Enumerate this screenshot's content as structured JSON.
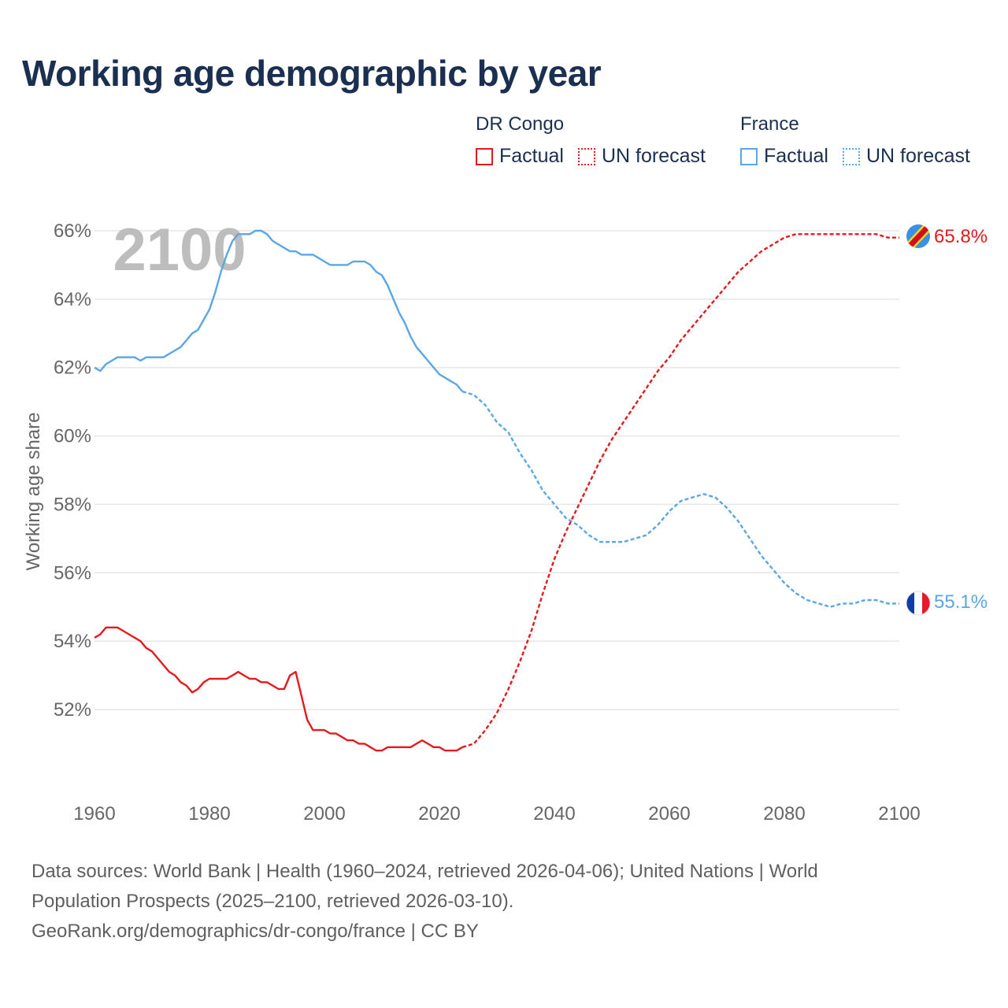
{
  "title": "Working age demographic by year",
  "legend": {
    "groups": [
      {
        "name": "DR Congo",
        "color": "#e41a1c",
        "factual_label": "Factual",
        "forecast_label": "UN forecast"
      },
      {
        "name": "France",
        "color": "#5aa6e6",
        "factual_label": "Factual",
        "forecast_label": "UN forecast"
      }
    ]
  },
  "year_watermark": "2100",
  "end_labels": {
    "drc": "65.8%",
    "france": "55.1%"
  },
  "footer": {
    "line1": "Data sources: World Bank | Health (1960–2024, retrieved 2026-04-06); United Nations | World",
    "line2": "Population Prospects (2025–2100, retrieved 2026-03-10).",
    "line3": "GeoRank.org/demographics/dr-congo/france | CC BY"
  },
  "colors": {
    "drc": "#e41a1c",
    "france": "#5aa6e6",
    "title": "#1b3050",
    "grid": "#e6e6e6",
    "axis_text": "#666666"
  },
  "chart_data": {
    "type": "line",
    "title": "Working age demographic by year",
    "xlabel": "",
    "ylabel": "Working age share",
    "xlim": [
      1960,
      2100
    ],
    "ylim": [
      50,
      66.5
    ],
    "x_ticks": [
      1960,
      1980,
      2000,
      2020,
      2040,
      2060,
      2080,
      2100
    ],
    "y_ticks": [
      52,
      54,
      56,
      58,
      60,
      62,
      64,
      66
    ],
    "y_tick_labels": [
      "52%",
      "54%",
      "56%",
      "58%",
      "60%",
      "62%",
      "64%",
      "66%"
    ],
    "series": [
      {
        "name": "DR Congo",
        "factual": {
          "x": [
            1960,
            1961,
            1962,
            1963,
            1964,
            1965,
            1966,
            1967,
            1968,
            1969,
            1970,
            1971,
            1972,
            1973,
            1974,
            1975,
            1976,
            1977,
            1978,
            1979,
            1980,
            1981,
            1982,
            1983,
            1984,
            1985,
            1986,
            1987,
            1988,
            1989,
            1990,
            1991,
            1992,
            1993,
            1994,
            1995,
            1996,
            1997,
            1998,
            1999,
            2000,
            2001,
            2002,
            2003,
            2004,
            2005,
            2006,
            2007,
            2008,
            2009,
            2010,
            2011,
            2012,
            2013,
            2014,
            2015,
            2016,
            2017,
            2018,
            2019,
            2020,
            2021,
            2022,
            2023,
            2024
          ],
          "values": [
            54.1,
            54.2,
            54.4,
            54.4,
            54.4,
            54.3,
            54.2,
            54.1,
            54.0,
            53.8,
            53.7,
            53.5,
            53.3,
            53.1,
            53.0,
            52.8,
            52.7,
            52.5,
            52.6,
            52.8,
            52.9,
            52.9,
            52.9,
            52.9,
            53.0,
            53.1,
            53.0,
            52.9,
            52.9,
            52.8,
            52.8,
            52.7,
            52.6,
            52.6,
            53.0,
            53.1,
            52.4,
            51.7,
            51.4,
            51.4,
            51.4,
            51.3,
            51.3,
            51.2,
            51.1,
            51.1,
            51.0,
            51.0,
            50.9,
            50.8,
            50.8,
            50.9,
            50.9,
            50.9,
            50.9,
            50.9,
            51.0,
            51.1,
            51.0,
            50.9,
            50.9,
            50.8,
            50.8,
            50.8,
            50.9
          ]
        },
        "forecast": {
          "x": [
            2024,
            2026,
            2028,
            2030,
            2032,
            2034,
            2036,
            2038,
            2040,
            2042,
            2044,
            2046,
            2048,
            2050,
            2052,
            2054,
            2056,
            2058,
            2060,
            2062,
            2064,
            2066,
            2068,
            2070,
            2072,
            2074,
            2076,
            2078,
            2080,
            2082,
            2084,
            2086,
            2088,
            2090,
            2092,
            2094,
            2096,
            2098,
            2100
          ],
          "values": [
            50.9,
            51.0,
            51.4,
            51.9,
            52.6,
            53.4,
            54.3,
            55.4,
            56.4,
            57.2,
            57.9,
            58.6,
            59.3,
            59.9,
            60.4,
            60.9,
            61.4,
            61.9,
            62.3,
            62.8,
            63.2,
            63.6,
            64.0,
            64.4,
            64.8,
            65.1,
            65.4,
            65.6,
            65.8,
            65.9,
            65.9,
            65.9,
            65.9,
            65.9,
            65.9,
            65.9,
            65.9,
            65.8,
            65.8
          ]
        },
        "end_value": 65.8
      },
      {
        "name": "France",
        "factual": {
          "x": [
            1960,
            1961,
            1962,
            1963,
            1964,
            1965,
            1966,
            1967,
            1968,
            1969,
            1970,
            1971,
            1972,
            1973,
            1974,
            1975,
            1976,
            1977,
            1978,
            1979,
            1980,
            1981,
            1982,
            1983,
            1984,
            1985,
            1986,
            1987,
            1988,
            1989,
            1990,
            1991,
            1992,
            1993,
            1994,
            1995,
            1996,
            1997,
            1998,
            1999,
            2000,
            2001,
            2002,
            2003,
            2004,
            2005,
            2006,
            2007,
            2008,
            2009,
            2010,
            2011,
            2012,
            2013,
            2014,
            2015,
            2016,
            2017,
            2018,
            2019,
            2020,
            2021,
            2022,
            2023,
            2024
          ],
          "values": [
            62.0,
            61.9,
            62.1,
            62.2,
            62.3,
            62.3,
            62.3,
            62.3,
            62.2,
            62.3,
            62.3,
            62.3,
            62.3,
            62.4,
            62.5,
            62.6,
            62.8,
            63.0,
            63.1,
            63.4,
            63.7,
            64.2,
            64.8,
            65.3,
            65.7,
            65.9,
            65.9,
            65.9,
            66.0,
            66.0,
            65.9,
            65.7,
            65.6,
            65.5,
            65.4,
            65.4,
            65.3,
            65.3,
            65.3,
            65.2,
            65.1,
            65.0,
            65.0,
            65.0,
            65.0,
            65.1,
            65.1,
            65.1,
            65.0,
            64.8,
            64.7,
            64.4,
            64.0,
            63.6,
            63.3,
            62.9,
            62.6,
            62.4,
            62.2,
            62.0,
            61.8,
            61.7,
            61.6,
            61.5,
            61.3
          ]
        },
        "forecast": {
          "x": [
            2024,
            2026,
            2028,
            2030,
            2032,
            2034,
            2036,
            2038,
            2040,
            2042,
            2044,
            2046,
            2048,
            2050,
            2052,
            2054,
            2056,
            2058,
            2060,
            2062,
            2064,
            2066,
            2068,
            2070,
            2072,
            2074,
            2076,
            2078,
            2080,
            2082,
            2084,
            2086,
            2088,
            2090,
            2092,
            2094,
            2096,
            2098,
            2100
          ],
          "values": [
            61.3,
            61.2,
            60.9,
            60.4,
            60.1,
            59.5,
            59.0,
            58.4,
            58.0,
            57.6,
            57.4,
            57.1,
            56.9,
            56.9,
            56.9,
            57.0,
            57.1,
            57.4,
            57.8,
            58.1,
            58.2,
            58.3,
            58.2,
            57.9,
            57.5,
            57.0,
            56.5,
            56.1,
            55.7,
            55.4,
            55.2,
            55.1,
            55.0,
            55.1,
            55.1,
            55.2,
            55.2,
            55.1,
            55.1
          ]
        },
        "end_value": 55.1
      }
    ]
  }
}
